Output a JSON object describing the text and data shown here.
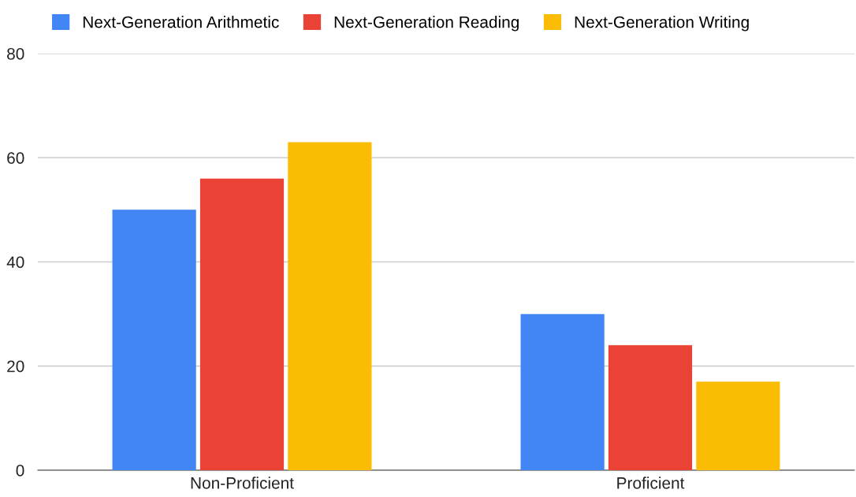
{
  "chart_data": {
    "type": "bar",
    "categories": [
      "Non-Proficient",
      "Proficient"
    ],
    "series": [
      {
        "name": "Next-Generation Arithmetic",
        "color": "#4285f4",
        "values": [
          50,
          30
        ]
      },
      {
        "name": "Next-Generation Reading",
        "color": "#ea4335",
        "values": [
          56,
          24
        ]
      },
      {
        "name": "Next-Generation Writing",
        "color": "#fbbc04",
        "values": [
          63,
          17
        ]
      }
    ],
    "ylim": [
      0,
      80
    ],
    "yticks": [
      0,
      20,
      40,
      60,
      80
    ],
    "grid": "y",
    "legend": "top left"
  }
}
